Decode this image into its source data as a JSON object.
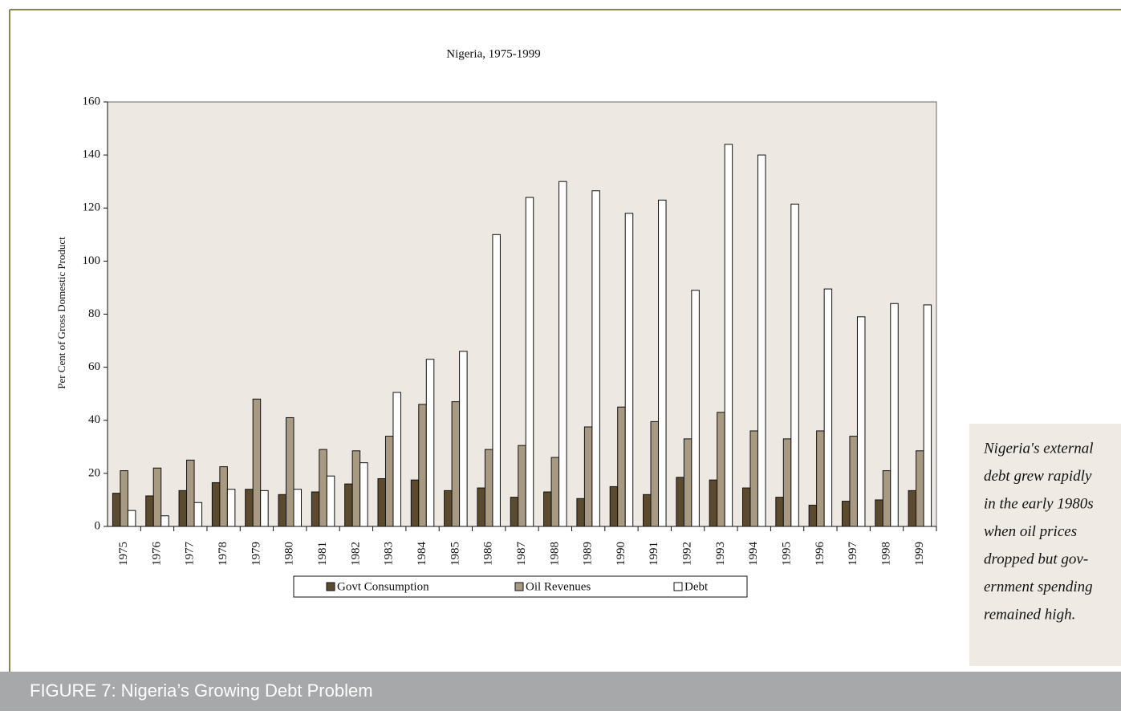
{
  "chart_data": {
    "type": "bar",
    "title": "Nigeria, 1975-1999",
    "y_label": "Per Cent of Gross Domestic Product",
    "categories": [
      "1975",
      "1976",
      "1977",
      "1978",
      "1979",
      "1980",
      "1981",
      "1982",
      "1983",
      "1984",
      "1985",
      "1986",
      "1987",
      "1988",
      "1989",
      "1990",
      "1991",
      "1992",
      "1993",
      "1994",
      "1995",
      "1996",
      "1997",
      "1998",
      "1999"
    ],
    "series": [
      {
        "name": "Govt Consumption",
        "color": "#5c4a2e",
        "values": [
          12.5,
          11.5,
          13.5,
          16.5,
          14,
          12,
          13,
          16,
          18,
          17.5,
          13.5,
          14.5,
          11,
          13,
          10.5,
          15,
          12,
          18.5,
          17.5,
          14.5,
          11,
          8,
          9.5,
          10,
          13.5
        ]
      },
      {
        "name": "Oil Revenues",
        "color": "#a89a82",
        "values": [
          21,
          22,
          25,
          22.5,
          48,
          41,
          29,
          28.5,
          34,
          46,
          47,
          29,
          30.5,
          26,
          37.5,
          45,
          39.5,
          33,
          43,
          36,
          33,
          36,
          34,
          21,
          28.5
        ]
      },
      {
        "name": "Debt",
        "color": "#ffffff",
        "values": [
          6,
          4,
          9,
          14,
          13.5,
          14,
          19,
          24,
          50.5,
          63,
          66,
          110,
          124,
          130,
          126.5,
          118,
          123,
          89,
          144,
          140,
          121.5,
          89.5,
          79,
          84,
          83.5
        ]
      }
    ],
    "ylim": [
      0,
      160
    ],
    "yticks": [
      0,
      20,
      40,
      60,
      80,
      100,
      120,
      140,
      160
    ],
    "plot_background": "#ede8e1"
  },
  "note": [
    "Nigeria's external",
    "debt grew rapidly",
    "in the early 1980s",
    "when oil prices",
    "dropped but gov-",
    "ernment spending",
    "remained high."
  ],
  "caption": "FIGURE 7: Nigeria’s Growing Debt Problem"
}
